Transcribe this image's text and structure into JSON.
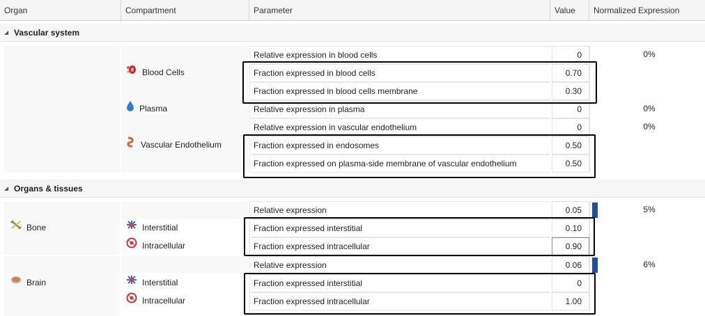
{
  "columns": {
    "organ": "Organ",
    "compartment": "Compartment",
    "parameter": "Parameter",
    "value": "Value",
    "normalized": "Normalized Expression"
  },
  "groups": {
    "vascular": "Vascular system",
    "organs": "Organs & tissues"
  },
  "compartments": {
    "blood_cells": "Blood Cells",
    "plasma": "Plasma",
    "vascular_endothelium": "Vascular Endothelium",
    "bone_interstitial": "Interstitial",
    "bone_intracellular": "Intracellular",
    "brain_interstitial": "Interstitial",
    "brain_intracellular": "Intracellular"
  },
  "organs": {
    "bone": "Bone",
    "brain": "Brain"
  },
  "rows": [
    {
      "parameter": "Relative expression in blood cells",
      "value": "0",
      "normalized": "0%"
    },
    {
      "parameter": "Fraction expressed in blood cells",
      "value": "0.70",
      "normalized": ""
    },
    {
      "parameter": "Fraction expressed in blood cells membrane",
      "value": "0.30",
      "normalized": ""
    },
    {
      "parameter": "Relative expression in plasma",
      "value": "0",
      "normalized": "0%"
    },
    {
      "parameter": "Relative expression in vascular endothelium",
      "value": "0",
      "normalized": "0%"
    },
    {
      "parameter": "Fraction expressed in endosomes",
      "value": "0.50",
      "normalized": ""
    },
    {
      "parameter": "Fraction expressed on plasma-side membrane of vascular endothelium",
      "value": "0.50",
      "normalized": ""
    },
    {
      "parameter": "Relative expression",
      "value": "0.05",
      "normalized": "5%"
    },
    {
      "parameter": "Fraction expressed interstitial",
      "value": "0.10",
      "normalized": ""
    },
    {
      "parameter": "Fraction expressed intracellular",
      "value": "0.90",
      "normalized": ""
    },
    {
      "parameter": "Relative expression",
      "value": "0.06",
      "normalized": "6%"
    },
    {
      "parameter": "Fraction expressed interstitial",
      "value": "0",
      "normalized": ""
    },
    {
      "parameter": "Fraction expressed intracellular",
      "value": "1.00",
      "normalized": ""
    }
  ],
  "bars": {
    "bone": 0.05,
    "brain": 0.06
  },
  "colors": {
    "bar": "#1f4e9a",
    "highlight": "#000000"
  },
  "icons": {
    "blood_cells": "blood-cells-icon",
    "plasma": "droplet-icon",
    "vascular_endothelium": "vessel-icon",
    "interstitial": "interstitial-icon",
    "intracellular": "cell-icon",
    "bone": "bone-icon",
    "brain": "brain-icon"
  }
}
